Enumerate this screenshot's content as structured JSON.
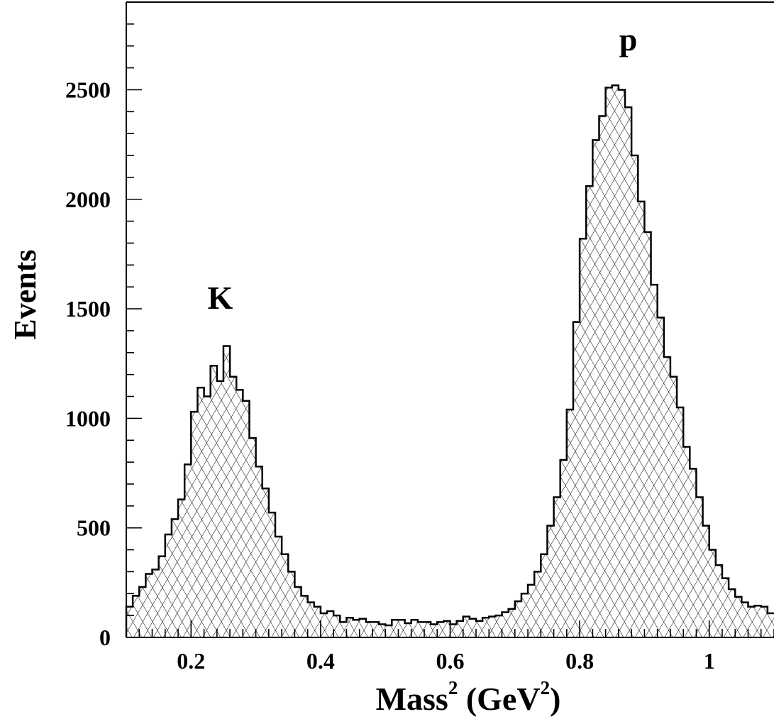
{
  "chart_data": {
    "type": "histogram",
    "title": "",
    "ylabel": "Events",
    "xlabel": {
      "base": "Mass",
      "sup1": "2",
      "unit_open": " (GeV",
      "sup2": "2",
      "unit_close": ")"
    },
    "xlim": [
      0.1,
      1.1
    ],
    "ylim": [
      0,
      2900
    ],
    "bin_width": 0.01,
    "x_ticks": [
      0.2,
      0.4,
      0.6,
      0.8,
      1.0
    ],
    "x_tick_labels": [
      "0.2",
      "0.4",
      "0.6",
      "0.8",
      "1"
    ],
    "y_ticks": [
      0,
      500,
      1000,
      1500,
      2000,
      2500
    ],
    "y_tick_labels": [
      "0",
      "500",
      "1000",
      "1500",
      "2000",
      "2500"
    ],
    "annotations": [
      {
        "text": "K",
        "x": 0.245,
        "y": 1500
      },
      {
        "text": "p",
        "x": 0.875,
        "y": 2680
      }
    ],
    "series": [
      {
        "fill": "cross-hatch",
        "values": [
          140,
          190,
          230,
          290,
          310,
          370,
          470,
          540,
          630,
          790,
          1030,
          1140,
          1100,
          1240,
          1170,
          1330,
          1190,
          1130,
          1080,
          910,
          780,
          680,
          570,
          460,
          380,
          300,
          230,
          190,
          160,
          140,
          110,
          120,
          100,
          70,
          90,
          80,
          85,
          70,
          70,
          60,
          55,
          80,
          80,
          65,
          80,
          70,
          70,
          60,
          70,
          75,
          60,
          75,
          95,
          85,
          75,
          90,
          95,
          100,
          115,
          130,
          165,
          200,
          240,
          300,
          380,
          510,
          640,
          810,
          1040,
          1440,
          1820,
          2060,
          2270,
          2380,
          2510,
          2520,
          2500,
          2420,
          2200,
          1990,
          1850,
          1610,
          1460,
          1280,
          1190,
          1050,
          870,
          770,
          640,
          510,
          400,
          330,
          270,
          220,
          185,
          160,
          140,
          145,
          140,
          110
        ]
      }
    ]
  }
}
